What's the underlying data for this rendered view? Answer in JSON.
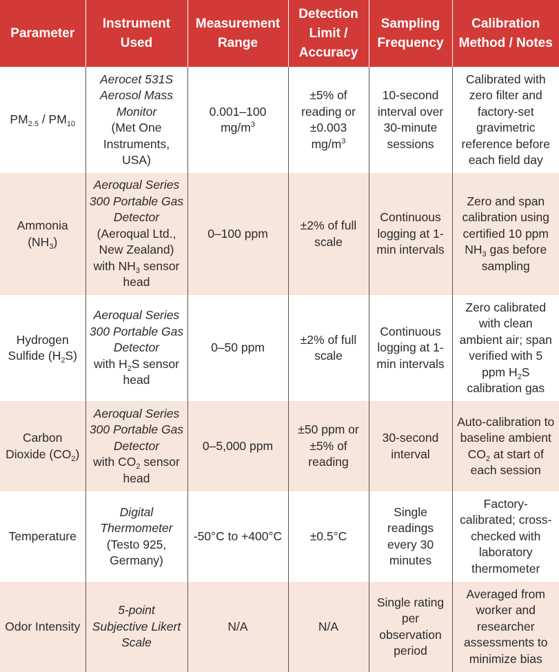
{
  "columns": [
    "Parameter",
    "Instrument Used",
    "Measurement Range",
    "Detection Limit / Accuracy",
    "Sampling Frequency",
    "Calibration Method / Notes"
  ],
  "rows": [
    {
      "parameter": [
        "PM",
        "2.5",
        " / PM",
        "10"
      ],
      "instrument_italic": "Aerocet 531S Aerosol Mass Monitor",
      "instrument_rest": "(Met One Instruments, USA)",
      "range": [
        "0.001–100 mg/m",
        "3"
      ],
      "accuracy": [
        "±5% of reading or ±0.003 mg/m",
        "3"
      ],
      "frequency": "10-second interval over 30-minute sessions",
      "notes": "Calibrated with zero filter and factory-set gravimetric reference before each field day"
    },
    {
      "parameter": [
        "Ammonia (NH",
        "3",
        ")"
      ],
      "instrument_italic": "Aeroqual Series 300 Portable Gas Detector",
      "instrument_rest": [
        "(Aeroqual Ltd., New Zealand) with NH",
        "3",
        " sensor head"
      ],
      "range": "0–100 ppm",
      "accuracy": "±2% of full scale",
      "frequency": "Continuous logging at 1-min intervals",
      "notes": [
        "Zero and span calibration using certified 10 ppm NH",
        "3",
        " gas before sampling"
      ]
    },
    {
      "parameter": [
        "Hydrogen Sulfide (H",
        "2",
        "S)"
      ],
      "instrument_italic": "Aeroqual Series 300 Portable Gas Detector",
      "instrument_rest": [
        "with H",
        "2",
        "S sensor head"
      ],
      "range": "0–50 ppm",
      "accuracy": "±2% of full scale",
      "frequency": "Continuous logging at 1-min intervals",
      "notes": [
        "Zero calibrated with clean ambient air; span verified with 5 ppm H",
        "2",
        "S calibration gas"
      ]
    },
    {
      "parameter": [
        "Carbon Dioxide (CO",
        "2",
        ")"
      ],
      "instrument_italic": "Aeroqual Series 300 Portable Gas Detector",
      "instrument_rest": [
        "with CO",
        "2",
        " sensor head"
      ],
      "range": "0–5,000 ppm",
      "accuracy": "±50 ppm or ±5% of reading",
      "frequency": "30-second interval",
      "notes": [
        "Auto-calibration to baseline ambient CO",
        "2",
        " at start of each session"
      ]
    },
    {
      "parameter": "Temperature",
      "instrument_italic": "Digital Thermometer",
      "instrument_rest": "(Testo 925, Germany)",
      "range": "-50°C to +400°C",
      "accuracy": "±0.5°C",
      "frequency": "Single readings every 30 minutes",
      "notes": "Factory-calibrated; cross-checked with laboratory thermometer"
    },
    {
      "parameter": "Odor Intensity",
      "instrument_italic": "5-point Subjective Likert Scale",
      "range": "N/A",
      "accuracy": "N/A",
      "frequency": "Single rating per observation period",
      "notes": "Averaged from worker and researcher assessments to minimize bias"
    }
  ],
  "colors": {
    "header_bg": "#d23a37",
    "header_text": "#ffffff",
    "row_alt_bg": "#f6e6dc",
    "row_bg": "#ffffff",
    "text": "#2b2b2b"
  }
}
